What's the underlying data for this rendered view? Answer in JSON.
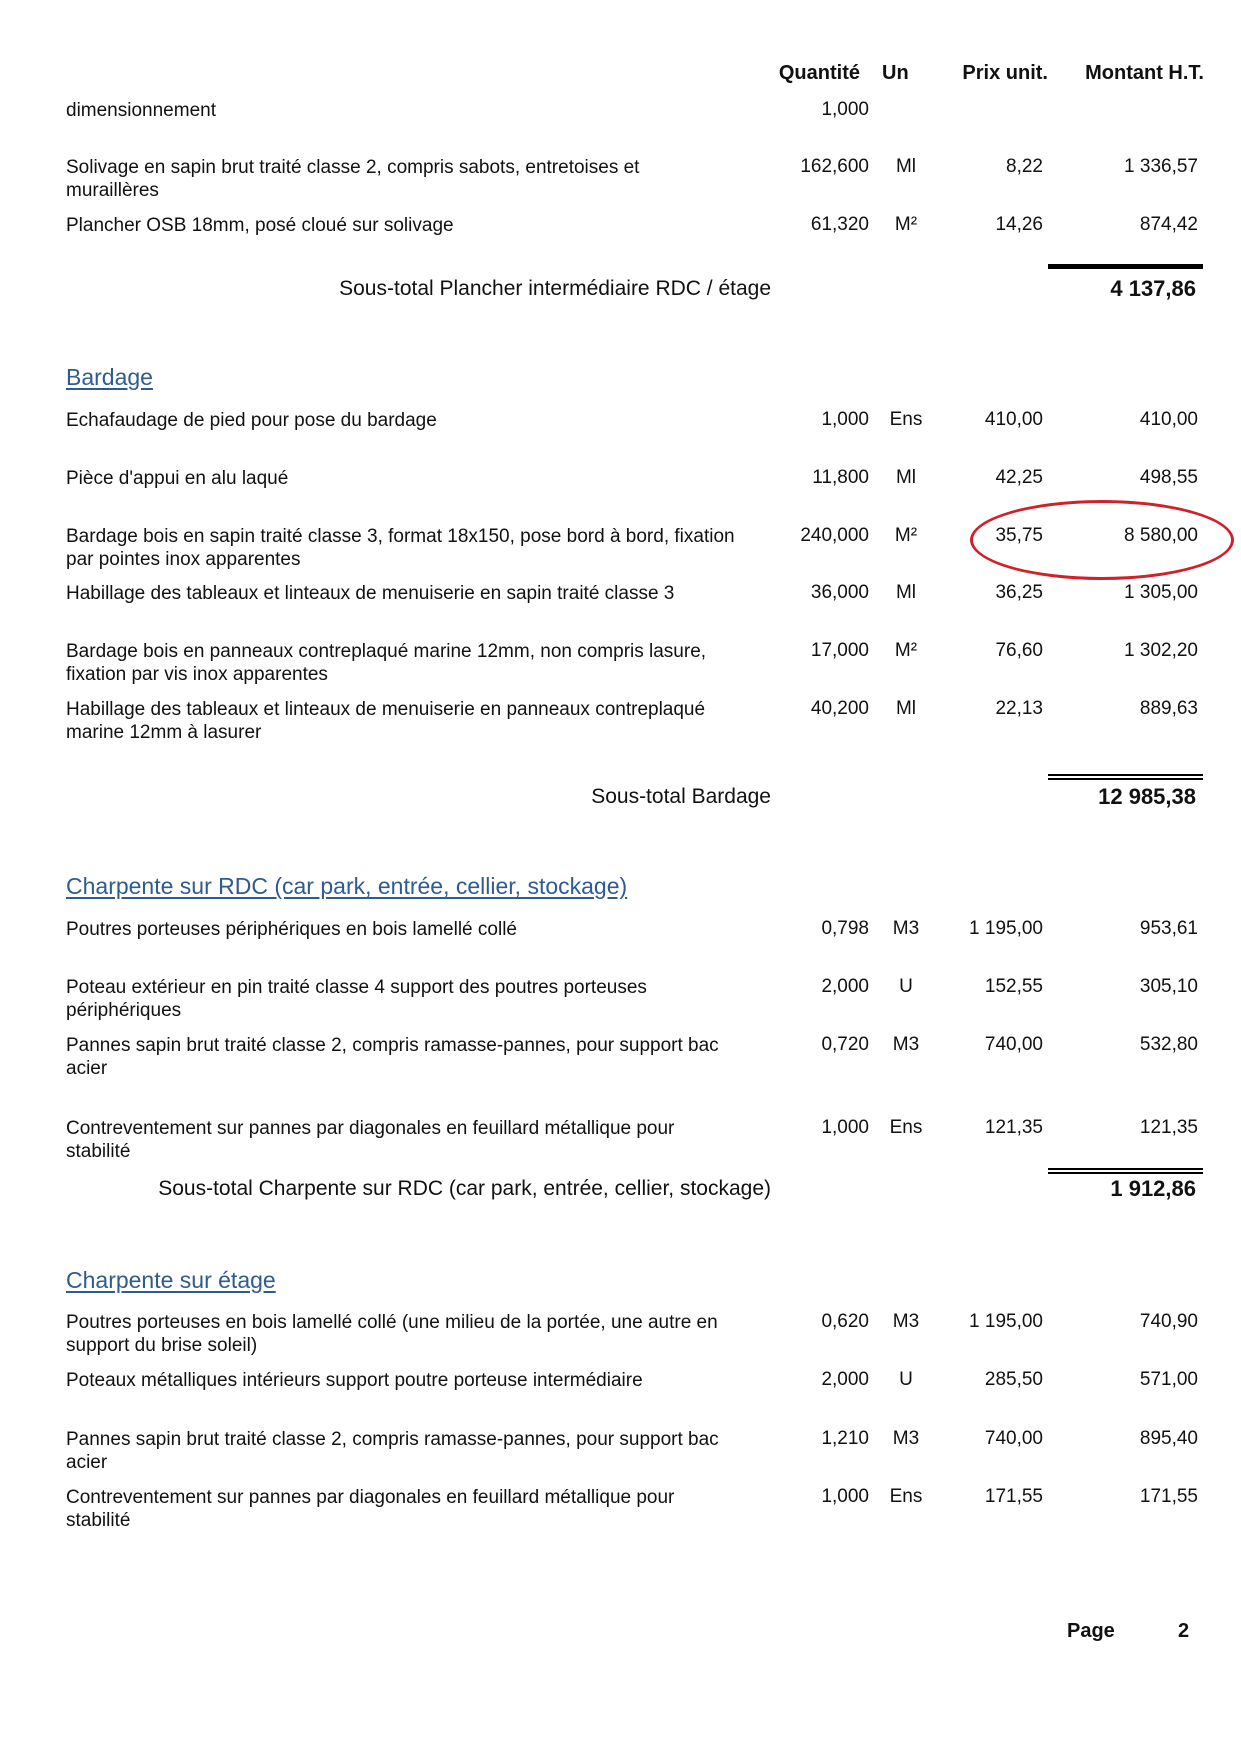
{
  "header": {
    "quantite": "Quantité",
    "un": "Un",
    "prix_unit": "Prix unit.",
    "montant": "Montant H.T."
  },
  "blocks": [
    {
      "rows": [
        {
          "description": "dimensionnement",
          "qty": "1,000",
          "unit": "",
          "price": "",
          "amount": ""
        },
        {
          "description": "Solivage en sapin brut traité classe 2, compris sabots, entretoises et muraillères",
          "qty": "162,600",
          "unit": "Ml",
          "price": "8,22",
          "amount": "1 336,57"
        },
        {
          "description": "Plancher OSB 18mm, posé cloué sur solivage",
          "qty": "61,320",
          "unit": "M²",
          "price": "14,26",
          "amount": "874,42"
        }
      ],
      "subtotal": {
        "label": "Sous-total  Plancher intermédiaire RDC / étage",
        "amount": "4 137,86"
      }
    },
    {
      "title": "Bardage",
      "rows": [
        {
          "description": "Echafaudage de pied pour pose du bardage",
          "qty": "1,000",
          "unit": "Ens",
          "price": "410,00",
          "amount": "410,00"
        },
        {
          "description": "Pièce d'appui en alu laqué",
          "qty": "11,800",
          "unit": "Ml",
          "price": "42,25",
          "amount": "498,55"
        },
        {
          "description": "Bardage bois en sapin traité classe 3, format 18x150, pose bord à bord, fixation par pointes inox apparentes",
          "qty": "240,000",
          "unit": "M²",
          "price": "35,75",
          "amount": "8 580,00"
        },
        {
          "description": "Habillage des tableaux et linteaux de menuiserie en sapin traité classe 3",
          "qty": "36,000",
          "unit": "Ml",
          "price": "36,25",
          "amount": "1 305,00"
        },
        {
          "description": "Bardage bois en panneaux contreplaqué marine 12mm, non compris lasure, fixation par vis inox apparentes",
          "qty": "17,000",
          "unit": "M²",
          "price": "76,60",
          "amount": "1 302,20"
        },
        {
          "description": "Habillage des tableaux et linteaux de menuiserie en panneaux contreplaqué marine 12mm à lasurer",
          "qty": "40,200",
          "unit": "Ml",
          "price": "22,13",
          "amount": "889,63"
        }
      ],
      "subtotal": {
        "label": "Sous-total  Bardage",
        "amount": "12 985,38"
      }
    },
    {
      "title": "Charpente sur RDC (car park, entrée, cellier, stockage)",
      "rows": [
        {
          "description": "Poutres porteuses périphériques en bois lamellé collé",
          "qty": "0,798",
          "unit": "M3",
          "price": "1 195,00",
          "amount": "953,61"
        },
        {
          "description": "Poteau extérieur en pin traité classe 4 support des poutres porteuses périphériques",
          "qty": "2,000",
          "unit": "U",
          "price": "152,55",
          "amount": "305,10"
        },
        {
          "description": "Pannes sapin brut traité classe 2, compris ramasse-pannes, pour support bac acier",
          "qty": "0,720",
          "unit": "M3",
          "price": "740,00",
          "amount": "532,80"
        },
        {
          "description": "Contreventement sur pannes par diagonales en feuillard métallique pour stabilité",
          "qty": "1,000",
          "unit": "Ens",
          "price": "121,35",
          "amount": "121,35"
        }
      ],
      "subtotal": {
        "label": "Sous-total  Charpente sur RDC (car park, entrée, cellier, stockage)",
        "amount": "1 912,86"
      }
    },
    {
      "title": "Charpente sur étage",
      "rows": [
        {
          "description": "Poutres porteuses en bois lamellé collé (une milieu de la portée, une autre en support du brise soleil)",
          "qty": "0,620",
          "unit": "M3",
          "price": "1 195,00",
          "amount": "740,90"
        },
        {
          "description": "Poteaux métalliques intérieurs support poutre porteuse intermédiaire",
          "qty": "2,000",
          "unit": "U",
          "price": "285,50",
          "amount": "571,00"
        },
        {
          "description": "Pannes sapin brut traité classe 2, compris ramasse-pannes, pour support bac acier",
          "qty": "1,210",
          "unit": "M3",
          "price": "740,00",
          "amount": "895,40"
        },
        {
          "description": "Contreventement sur pannes par diagonales en feuillard métallique pour stabilité",
          "qty": "1,000",
          "unit": "Ens",
          "price": "171,55",
          "amount": "171,55"
        }
      ]
    }
  ],
  "footer": {
    "page_label": "Page",
    "page_number": "2"
  },
  "colors": {
    "section_title": "#2f5b8e",
    "annotation_circle": "#d0202a"
  },
  "annotation": {
    "shape": "hand-drawn-ellipse",
    "highlights": "blocks.1.rows.2 price and amount"
  }
}
